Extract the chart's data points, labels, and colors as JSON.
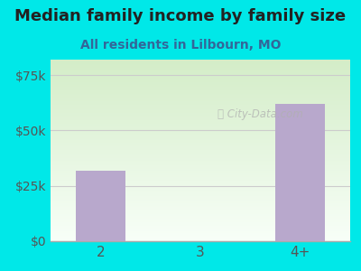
{
  "title": "Median family income by family size",
  "subtitle": "All residents in Lilbourn, MO",
  "categories": [
    "2",
    "3",
    "4+"
  ],
  "values": [
    32000,
    0,
    62000
  ],
  "bar_color": "#b8a8cc",
  "outer_bg": "#00e8e8",
  "inner_bg_top": "#d4edc8",
  "inner_bg_bottom": "#f8fff8",
  "title_color": "#222222",
  "subtitle_color": "#336699",
  "axis_label_color": "#555555",
  "yticks": [
    0,
    25000,
    50000,
    75000
  ],
  "ytick_labels": [
    "$0",
    "$25k",
    "$50k",
    "$75k"
  ],
  "ylim": [
    0,
    82000
  ],
  "watermark": "City-Data.com",
  "title_fontsize": 13,
  "subtitle_fontsize": 10
}
